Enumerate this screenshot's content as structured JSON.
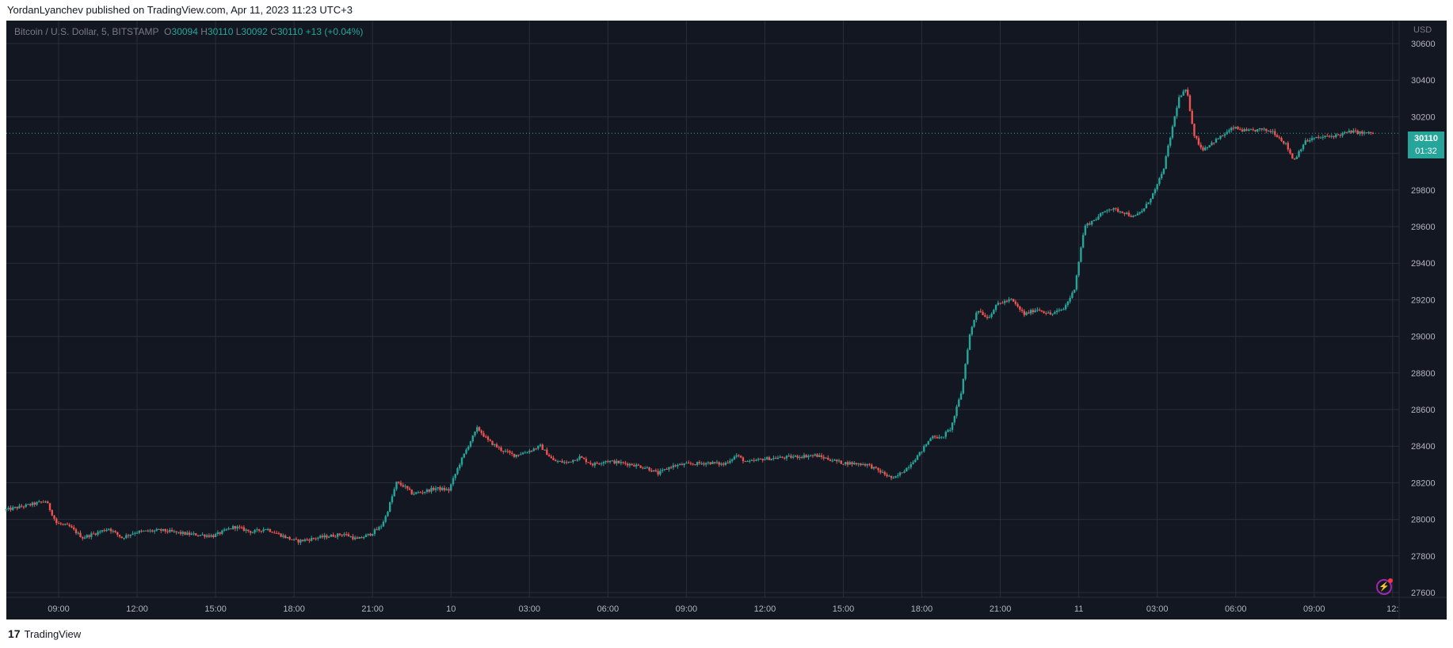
{
  "header": {
    "publisher_line": "YordanLyanchev published on TradingView.com, Apr 11, 2023 11:23 UTC+3"
  },
  "legend": {
    "symbol": "Bitcoin / U.S. Dollar, 5, BITSTAMP",
    "o_label": "O",
    "o_value": "30094",
    "h_label": "H",
    "h_value": "30110",
    "l_label": "L",
    "l_value": "30092",
    "c_label": "C",
    "c_value": "30110",
    "change": "+13 (+0.04%)"
  },
  "price_badge": {
    "price": "30110",
    "countdown": "01:32"
  },
  "axis": {
    "currency": "USD"
  },
  "footer": {
    "brand": "TradingView",
    "logo_icon": "tradingview-logo-icon"
  },
  "colors": {
    "up": "#26a69a",
    "down": "#ef5350",
    "background": "#131722",
    "grid": "#2a2e39"
  },
  "chart_data": {
    "type": "candlestick",
    "title": "",
    "ylim": [
      27600,
      30700
    ],
    "yticks": [
      27600,
      27800,
      28000,
      28200,
      28400,
      28600,
      28800,
      29000,
      29200,
      29400,
      29600,
      29800,
      30000,
      30200,
      30400,
      30600
    ],
    "xticks": [
      "09:00",
      "12:00",
      "15:00",
      "18:00",
      "21:00",
      "10",
      "03:00",
      "06:00",
      "09:00",
      "12:00",
      "15:00",
      "18:00",
      "21:00",
      "11",
      "03:00",
      "06:00",
      "09:00",
      "12:"
    ],
    "xlim_hours": [
      7,
      59.6
    ],
    "xtick_hours": [
      9,
      12,
      15,
      18,
      21,
      24,
      27,
      30,
      33,
      36,
      39,
      42,
      45,
      48,
      51,
      54,
      57,
      60
    ],
    "close_series": [
      [
        7.0,
        28050
      ],
      [
        8.0,
        28080
      ],
      [
        8.6,
        28100
      ],
      [
        9.0,
        27980
      ],
      [
        9.5,
        27960
      ],
      [
        10.0,
        27900
      ],
      [
        11.0,
        27950
      ],
      [
        11.5,
        27900
      ],
      [
        12.0,
        27930
      ],
      [
        13.0,
        27940
      ],
      [
        14.0,
        27920
      ],
      [
        15.0,
        27910
      ],
      [
        15.8,
        27960
      ],
      [
        16.5,
        27930
      ],
      [
        17.0,
        27950
      ],
      [
        17.8,
        27900
      ],
      [
        18.2,
        27880
      ],
      [
        19.0,
        27900
      ],
      [
        20.0,
        27920
      ],
      [
        20.5,
        27890
      ],
      [
        21.0,
        27920
      ],
      [
        21.4,
        27960
      ],
      [
        21.6,
        28020
      ],
      [
        22.0,
        28200
      ],
      [
        22.3,
        28180
      ],
      [
        22.6,
        28140
      ],
      [
        23.0,
        28150
      ],
      [
        23.5,
        28170
      ],
      [
        24.0,
        28160
      ],
      [
        24.4,
        28300
      ],
      [
        24.8,
        28420
      ],
      [
        25.1,
        28500
      ],
      [
        25.5,
        28430
      ],
      [
        26.0,
        28380
      ],
      [
        26.5,
        28350
      ],
      [
        27.0,
        28370
      ],
      [
        27.5,
        28400
      ],
      [
        28.0,
        28320
      ],
      [
        28.5,
        28310
      ],
      [
        29.0,
        28340
      ],
      [
        29.5,
        28300
      ],
      [
        30.0,
        28320
      ],
      [
        31.0,
        28300
      ],
      [
        31.6,
        28280
      ],
      [
        32.0,
        28250
      ],
      [
        32.5,
        28290
      ],
      [
        33.0,
        28300
      ],
      [
        34.0,
        28310
      ],
      [
        34.5,
        28300
      ],
      [
        35.0,
        28350
      ],
      [
        35.4,
        28310
      ],
      [
        36.0,
        28330
      ],
      [
        37.0,
        28340
      ],
      [
        38.0,
        28350
      ],
      [
        38.5,
        28330
      ],
      [
        39.0,
        28310
      ],
      [
        40.0,
        28300
      ],
      [
        40.5,
        28260
      ],
      [
        41.0,
        28220
      ],
      [
        41.5,
        28280
      ],
      [
        42.0,
        28360
      ],
      [
        42.5,
        28460
      ],
      [
        42.8,
        28440
      ],
      [
        43.2,
        28500
      ],
      [
        43.6,
        28700
      ],
      [
        43.9,
        29000
      ],
      [
        44.2,
        29150
      ],
      [
        44.6,
        29100
      ],
      [
        45.0,
        29180
      ],
      [
        45.5,
        29200
      ],
      [
        46.0,
        29120
      ],
      [
        46.5,
        29150
      ],
      [
        47.0,
        29120
      ],
      [
        47.5,
        29150
      ],
      [
        47.9,
        29250
      ],
      [
        48.3,
        29600
      ],
      [
        48.8,
        29650
      ],
      [
        49.2,
        29700
      ],
      [
        49.8,
        29680
      ],
      [
        50.2,
        29650
      ],
      [
        50.6,
        29700
      ],
      [
        51.0,
        29800
      ],
      [
        51.3,
        29900
      ],
      [
        51.6,
        30100
      ],
      [
        51.9,
        30300
      ],
      [
        52.2,
        30350
      ],
      [
        52.5,
        30100
      ],
      [
        52.8,
        30020
      ],
      [
        53.2,
        30060
      ],
      [
        53.6,
        30100
      ],
      [
        54.0,
        30140
      ],
      [
        54.5,
        30120
      ],
      [
        55.0,
        30130
      ],
      [
        55.5,
        30120
      ],
      [
        56.0,
        30050
      ],
      [
        56.3,
        29960
      ],
      [
        56.7,
        30060
      ],
      [
        57.0,
        30080
      ],
      [
        57.5,
        30090
      ],
      [
        58.0,
        30100
      ],
      [
        58.5,
        30120
      ],
      [
        59.0,
        30110
      ],
      [
        59.3,
        30110
      ]
    ]
  }
}
